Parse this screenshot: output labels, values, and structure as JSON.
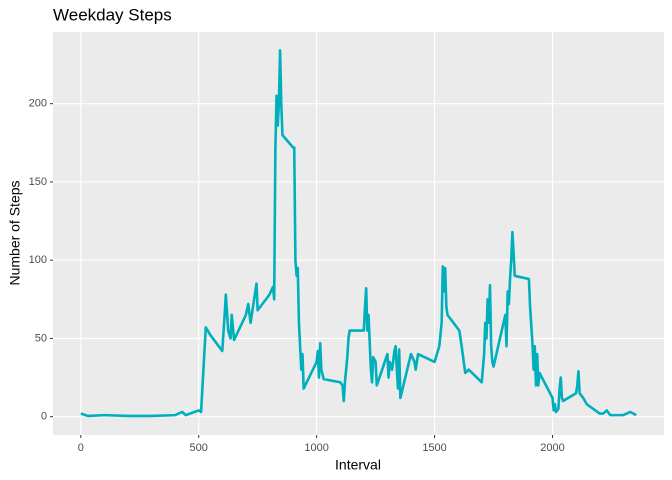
{
  "chart_data": {
    "type": "line",
    "title": "Weekday Steps",
    "x_label": "Interval",
    "y_label": "Number of Steps",
    "x": [
      0,
      30,
      100,
      200,
      300,
      400,
      430,
      445,
      500,
      510,
      520,
      530,
      550,
      600,
      610,
      615,
      625,
      635,
      640,
      650,
      700,
      710,
      720,
      730,
      745,
      750,
      800,
      815,
      820,
      825,
      830,
      835,
      840,
      845,
      850,
      855,
      900,
      905,
      910,
      915,
      920,
      925,
      930,
      935,
      940,
      945,
      1000,
      1005,
      1010,
      1015,
      1020,
      1030,
      1100,
      1110,
      1115,
      1120,
      1130,
      1135,
      1140,
      1200,
      1205,
      1210,
      1215,
      1220,
      1230,
      1235,
      1240,
      1250,
      1255,
      1300,
      1305,
      1310,
      1320,
      1330,
      1335,
      1340,
      1345,
      1350,
      1355,
      1400,
      1415,
      1420,
      1430,
      1500,
      1520,
      1530,
      1535,
      1540,
      1545,
      1550,
      1555,
      1605,
      1615,
      1630,
      1645,
      1700,
      1710,
      1715,
      1720,
      1725,
      1730,
      1735,
      1740,
      1745,
      1750,
      1800,
      1805,
      1810,
      1815,
      1820,
      1825,
      1830,
      1835,
      1840,
      1900,
      1905,
      1915,
      1920,
      1925,
      1930,
      1935,
      1940,
      1945,
      2000,
      2005,
      2010,
      2015,
      2025,
      2030,
      2035,
      2040,
      2045,
      2100,
      2105,
      2110,
      2115,
      2130,
      2145,
      2200,
      2215,
      2230,
      2245,
      2300,
      2330,
      2355
    ],
    "series": [
      {
        "name": "steps",
        "color": "#00AFBB",
        "values": [
          2,
          0.5,
          1,
          0.5,
          0.5,
          1,
          3,
          1,
          4,
          3,
          30,
          57,
          52,
          42,
          65,
          78,
          55,
          50,
          65,
          49,
          65,
          72,
          60,
          70,
          85,
          68,
          78,
          83,
          75,
          170,
          205,
          186,
          200,
          234,
          200,
          180,
          172,
          172,
          100,
          90,
          95,
          60,
          45,
          30,
          40,
          18,
          35,
          42,
          25,
          47,
          30,
          24,
          22,
          20,
          10,
          22,
          38,
          50,
          55,
          55,
          70,
          82,
          55,
          65,
          30,
          22,
          38,
          35,
          20,
          40,
          25,
          35,
          30,
          42,
          45,
          30,
          18,
          43,
          12,
          40,
          35,
          30,
          40,
          35,
          45,
          60,
          96,
          80,
          95,
          70,
          65,
          55,
          45,
          28,
          30,
          22,
          40,
          60,
          50,
          75,
          60,
          84,
          45,
          35,
          32,
          65,
          45,
          80,
          72,
          88,
          100,
          118,
          105,
          90,
          88,
          70,
          47,
          30,
          45,
          20,
          40,
          20,
          28,
          12,
          4,
          8,
          3,
          5,
          18,
          25,
          12,
          10,
          15,
          20,
          29,
          15,
          12,
          8,
          2,
          2,
          4,
          1,
          1,
          3,
          1
        ]
      }
    ],
    "xlim": [
      -117.75,
      2472.75
    ],
    "ylim": [
      -11.7,
      245.8
    ],
    "xticks": [
      0,
      500,
      1000,
      1500,
      2000
    ],
    "yticks": [
      0,
      50,
      100,
      150,
      200
    ],
    "grid": true
  }
}
